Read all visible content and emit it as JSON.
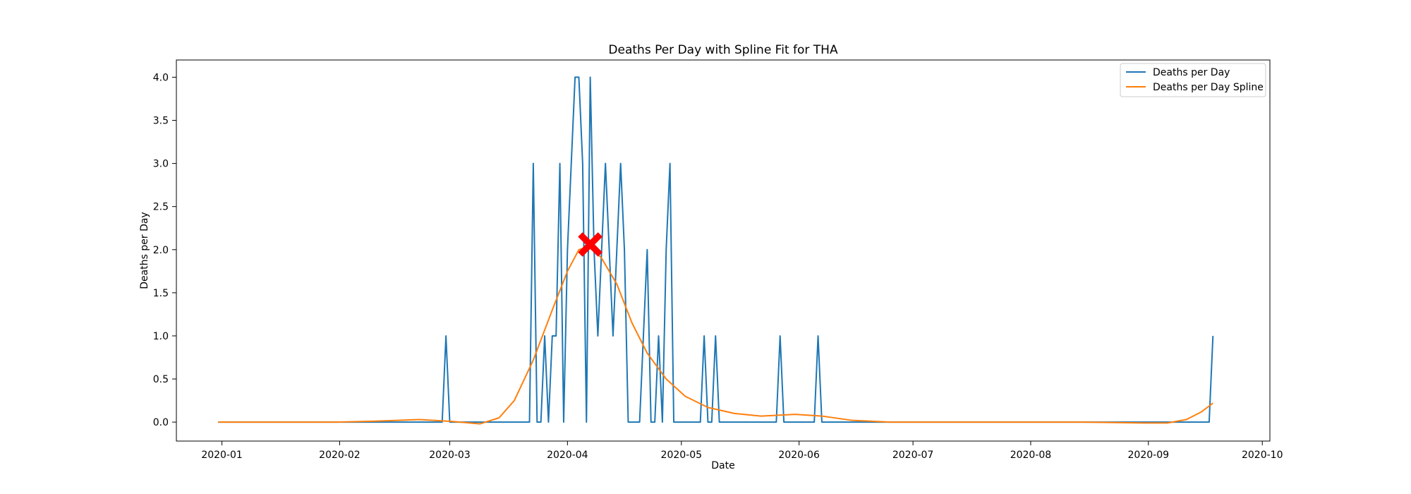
{
  "chart_data": {
    "type": "line",
    "title": "Deaths Per Day with Spline Fit for THA",
    "xlabel": "Date",
    "ylabel": "Deaths per Day",
    "x_range": [
      "2019-12-20",
      "2020-10-03"
    ],
    "ylim": [
      -0.22,
      4.2
    ],
    "x_ticks": [
      "2020-01",
      "2020-02",
      "2020-03",
      "2020-04",
      "2020-05",
      "2020-06",
      "2020-07",
      "2020-08",
      "2020-09",
      "2020-10"
    ],
    "y_ticks": [
      "0.0",
      "0.5",
      "1.0",
      "1.5",
      "2.0",
      "2.5",
      "3.0",
      "3.5",
      "4.0"
    ],
    "grid": false,
    "legend_position": "top-right",
    "series": [
      {
        "name": "Deaths per Day",
        "color": "#1f77b4",
        "points": [
          [
            "2019-12-31",
            0
          ],
          [
            "2020-02-28",
            0
          ],
          [
            "2020-02-29",
            1
          ],
          [
            "2020-03-01",
            0
          ],
          [
            "2020-03-22",
            0
          ],
          [
            "2020-03-23",
            3
          ],
          [
            "2020-03-24",
            0
          ],
          [
            "2020-03-25",
            0
          ],
          [
            "2020-03-26",
            1
          ],
          [
            "2020-03-27",
            0
          ],
          [
            "2020-03-28",
            1
          ],
          [
            "2020-03-29",
            1
          ],
          [
            "2020-03-30",
            3
          ],
          [
            "2020-03-31",
            0
          ],
          [
            "2020-04-01",
            2
          ],
          [
            "2020-04-02",
            3
          ],
          [
            "2020-04-03",
            4
          ],
          [
            "2020-04-04",
            4
          ],
          [
            "2020-04-05",
            3
          ],
          [
            "2020-04-06",
            0
          ],
          [
            "2020-04-07",
            4
          ],
          [
            "2020-04-08",
            2
          ],
          [
            "2020-04-09",
            1
          ],
          [
            "2020-04-10",
            2
          ],
          [
            "2020-04-11",
            3
          ],
          [
            "2020-04-12",
            2
          ],
          [
            "2020-04-13",
            1
          ],
          [
            "2020-04-14",
            2
          ],
          [
            "2020-04-15",
            3
          ],
          [
            "2020-04-16",
            2
          ],
          [
            "2020-04-17",
            0
          ],
          [
            "2020-04-18",
            0
          ],
          [
            "2020-04-19",
            0
          ],
          [
            "2020-04-20",
            0
          ],
          [
            "2020-04-21",
            1
          ],
          [
            "2020-04-22",
            2
          ],
          [
            "2020-04-23",
            0
          ],
          [
            "2020-04-24",
            0
          ],
          [
            "2020-04-25",
            1
          ],
          [
            "2020-04-26",
            0
          ],
          [
            "2020-04-27",
            2
          ],
          [
            "2020-04-28",
            3
          ],
          [
            "2020-04-29",
            0
          ],
          [
            "2020-05-06",
            0
          ],
          [
            "2020-05-07",
            1
          ],
          [
            "2020-05-08",
            0
          ],
          [
            "2020-05-09",
            0
          ],
          [
            "2020-05-10",
            1
          ],
          [
            "2020-05-11",
            0
          ],
          [
            "2020-05-26",
            0
          ],
          [
            "2020-05-27",
            1
          ],
          [
            "2020-05-28",
            0
          ],
          [
            "2020-06-05",
            0
          ],
          [
            "2020-06-06",
            1
          ],
          [
            "2020-06-07",
            0
          ],
          [
            "2020-09-17",
            0
          ],
          [
            "2020-09-18",
            1
          ]
        ]
      },
      {
        "name": "Deaths per Day Spline",
        "color": "#ff7f0e",
        "points": [
          [
            "2019-12-31",
            0
          ],
          [
            "2020-01-31",
            0
          ],
          [
            "2020-02-10",
            0.01
          ],
          [
            "2020-02-22",
            0.03
          ],
          [
            "2020-03-01",
            0.01
          ],
          [
            "2020-03-09",
            -0.02
          ],
          [
            "2020-03-14",
            0.05
          ],
          [
            "2020-03-18",
            0.25
          ],
          [
            "2020-03-23",
            0.72
          ],
          [
            "2020-03-28",
            1.3
          ],
          [
            "2020-04-01",
            1.75
          ],
          [
            "2020-04-04",
            2.0
          ],
          [
            "2020-04-07",
            2.04
          ],
          [
            "2020-04-10",
            1.9
          ],
          [
            "2020-04-14",
            1.6
          ],
          [
            "2020-04-18",
            1.15
          ],
          [
            "2020-04-22",
            0.8
          ],
          [
            "2020-04-27",
            0.5
          ],
          [
            "2020-05-02",
            0.3
          ],
          [
            "2020-05-08",
            0.17
          ],
          [
            "2020-05-15",
            0.1
          ],
          [
            "2020-05-22",
            0.07
          ],
          [
            "2020-05-31",
            0.09
          ],
          [
            "2020-06-07",
            0.07
          ],
          [
            "2020-06-15",
            0.02
          ],
          [
            "2020-06-25",
            0
          ],
          [
            "2020-08-15",
            0
          ],
          [
            "2020-08-31",
            -0.01
          ],
          [
            "2020-09-06",
            -0.01
          ],
          [
            "2020-09-11",
            0.03
          ],
          [
            "2020-09-15",
            0.12
          ],
          [
            "2020-09-18",
            0.22
          ]
        ]
      }
    ],
    "marker": {
      "x": "2020-04-07",
      "y": 2.06,
      "color": "#ff0000",
      "shape": "x-cross"
    }
  }
}
